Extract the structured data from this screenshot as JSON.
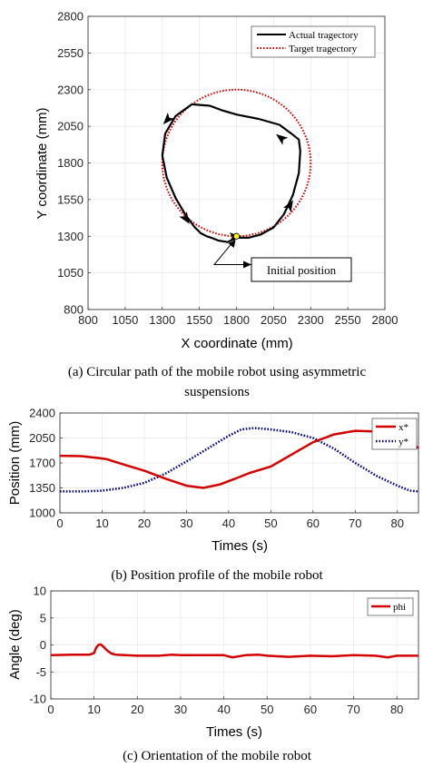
{
  "colors": {
    "actual": "#000000",
    "target": "#d40000",
    "x_series": "#d40000",
    "y_series": "#00008b",
    "phi_series": "#d40000",
    "initial_marker": "#ffff00",
    "grid": "#e6e6e6"
  },
  "chart_data": [
    {
      "type": "line",
      "caption": "(a) Circular path of the mobile robot using asymmetric suspensions",
      "xlabel": "X coordinate (mm)",
      "ylabel": "Y coordinate (mm)",
      "xlim": [
        800,
        2800
      ],
      "ylim": [
        800,
        2800
      ],
      "xticks": [
        800,
        1050,
        1300,
        1550,
        1800,
        2050,
        2300,
        2550,
        2800
      ],
      "yticks": [
        800,
        1050,
        1300,
        1550,
        1800,
        2050,
        2300,
        2550,
        2800
      ],
      "grid": true,
      "legend_position": "top-right",
      "series": [
        {
          "name": "Actual tragectory",
          "style": "solid",
          "x": [
            1800,
            1880,
            1960,
            2050,
            2120,
            2180,
            2220,
            2230,
            2220,
            2170,
            2090,
            1950,
            1800,
            1700,
            1620,
            1500,
            1390,
            1320,
            1300,
            1330,
            1390,
            1460,
            1520,
            1560,
            1600,
            1630,
            1680,
            1740,
            1800
          ],
          "y": [
            1290,
            1290,
            1310,
            1360,
            1450,
            1580,
            1730,
            1880,
            1960,
            2000,
            2060,
            2100,
            2130,
            2160,
            2190,
            2200,
            2120,
            2000,
            1850,
            1700,
            1560,
            1440,
            1360,
            1320,
            1300,
            1290,
            1270,
            1260,
            1290
          ]
        },
        {
          "name": "Target tragectory",
          "style": "dotted",
          "center": [
            1800,
            1800
          ],
          "radius": 500
        }
      ],
      "arrow_points": [
        [
          1335,
          2095
        ],
        [
          2100,
          1970
        ],
        [
          2160,
          1510
        ],
        [
          1460,
          1420
        ],
        [
          1790,
          1295
        ]
      ],
      "annotation": {
        "text": "Initial position",
        "point": [
          1800,
          1300
        ],
        "elbow": [
          1650,
          1100
        ],
        "box_anchor": [
          2050,
          1130
        ]
      }
    },
    {
      "type": "line",
      "caption": "(b) Position profile of the mobile robot",
      "xlabel": "Times (s)",
      "ylabel": "Position (mm)",
      "xlim": [
        0,
        85
      ],
      "ylim": [
        1000,
        2400
      ],
      "xticks": [
        0,
        10,
        20,
        30,
        40,
        50,
        60,
        70,
        80
      ],
      "yticks": [
        1000,
        1350,
        1700,
        2050,
        2400
      ],
      "grid": true,
      "legend_position": "top-right",
      "series": [
        {
          "name": "x*",
          "style": "solid",
          "x": [
            0,
            5,
            9,
            11,
            15,
            20,
            25,
            30,
            34,
            38,
            42,
            45,
            50,
            55,
            60,
            65,
            70,
            75,
            80,
            83,
            85
          ],
          "y": [
            1800,
            1795,
            1770,
            1755,
            1680,
            1590,
            1480,
            1380,
            1350,
            1400,
            1490,
            1560,
            1650,
            1820,
            1990,
            2100,
            2150,
            2140,
            2080,
            1980,
            1910
          ]
        },
        {
          "name": "y*",
          "style": "dotted",
          "x": [
            0,
            5,
            10,
            15,
            20,
            25,
            30,
            35,
            40,
            43,
            46,
            50,
            55,
            60,
            65,
            70,
            75,
            80,
            83,
            85
          ],
          "y": [
            1300,
            1300,
            1310,
            1350,
            1420,
            1550,
            1720,
            1900,
            2080,
            2170,
            2190,
            2170,
            2130,
            2050,
            1900,
            1700,
            1520,
            1380,
            1310,
            1300
          ]
        }
      ]
    },
    {
      "type": "line",
      "caption": "(c) Orientation of the mobile robot",
      "xlabel": "Times (s)",
      "ylabel": "Angle (deg)",
      "xlim": [
        0,
        85
      ],
      "ylim": [
        -10,
        10
      ],
      "xticks": [
        0,
        10,
        20,
        30,
        40,
        50,
        60,
        70,
        80
      ],
      "yticks": [
        -10,
        -5,
        0,
        5,
        10
      ],
      "grid": true,
      "legend_position": "top-right",
      "series": [
        {
          "name": "phi",
          "style": "solid",
          "x": [
            0,
            5,
            9,
            10,
            10.5,
            11,
            11.5,
            12,
            13,
            14,
            15,
            20,
            25,
            28,
            30,
            35,
            40,
            42,
            45,
            48,
            50,
            55,
            60,
            65,
            70,
            75,
            78,
            80,
            85
          ],
          "y": [
            -1.9,
            -1.8,
            -1.8,
            -1.5,
            -0.5,
            0.0,
            0.1,
            -0.2,
            -1.0,
            -1.6,
            -1.8,
            -2.0,
            -2.0,
            -1.8,
            -1.9,
            -1.9,
            -1.9,
            -2.3,
            -1.9,
            -1.8,
            -2.0,
            -2.2,
            -2.0,
            -2.1,
            -1.9,
            -2.0,
            -2.3,
            -2.0,
            -2.0
          ]
        }
      ]
    }
  ]
}
